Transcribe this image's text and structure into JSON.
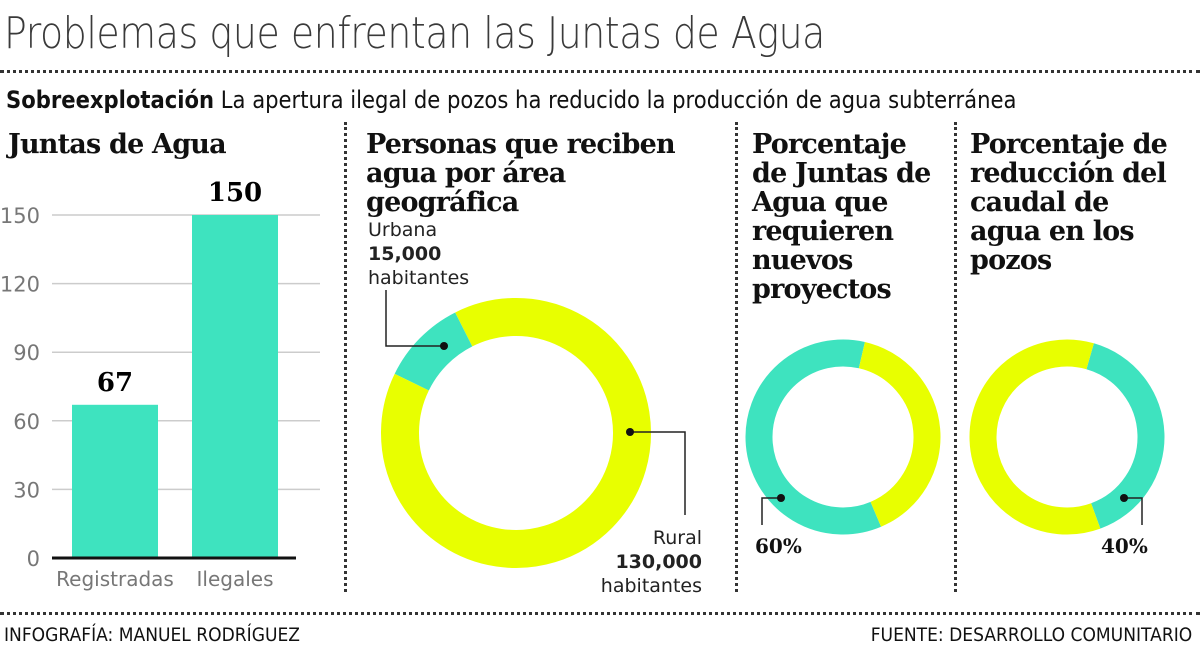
{
  "title": "Problemas que enfrentan las Juntas de Agua",
  "subtitle": {
    "bold": "Sobreexplotación",
    "text": "La apertura ilegal de pozos ha reducido la producción de agua subterránea"
  },
  "colors": {
    "teal": "#3ee3bf",
    "yellow": "#e8ff00",
    "grid": "#cccccc"
  },
  "chart_data": [
    {
      "type": "bar",
      "title": "Juntas de Agua",
      "categories": [
        "Registradas",
        "Ilegales"
      ],
      "values": [
        67,
        150
      ],
      "data_labels": [
        "67",
        "150"
      ],
      "ylim": [
        0,
        150
      ],
      "yticks": [
        "0",
        "30",
        "60",
        "90",
        "120",
        "150"
      ],
      "grid": true
    },
    {
      "type": "pie",
      "style": "donut",
      "title": "Personas que reciben agua por área geográfica",
      "slices": [
        {
          "name": "Urbana",
          "value": 15000,
          "label_value": "15,000",
          "unit": "habitantes",
          "color": "#3ee3bf"
        },
        {
          "name": "Rural",
          "value": 130000,
          "label_value": "130,000",
          "unit": "habitantes",
          "color": "#e8ff00"
        }
      ]
    },
    {
      "type": "pie",
      "style": "donut",
      "title": "Porcentaje de Juntas de Agua que requieren nuevos proyectos",
      "slices": [
        {
          "value": 60,
          "label": "60%",
          "color": "#3ee3bf"
        },
        {
          "value": 40,
          "color": "#e8ff00"
        }
      ]
    },
    {
      "type": "pie",
      "style": "donut",
      "title": "Porcentaje de reducción del caudal de agua en los pozos",
      "slices": [
        {
          "value": 40,
          "label": "40%",
          "color": "#3ee3bf"
        },
        {
          "value": 60,
          "color": "#e8ff00"
        }
      ]
    }
  ],
  "footer": {
    "left": "INFOGRAFÍA: MANUEL RODRÍGUEZ",
    "right": "FUENTE: DESARROLLO COMUNITARIO"
  }
}
